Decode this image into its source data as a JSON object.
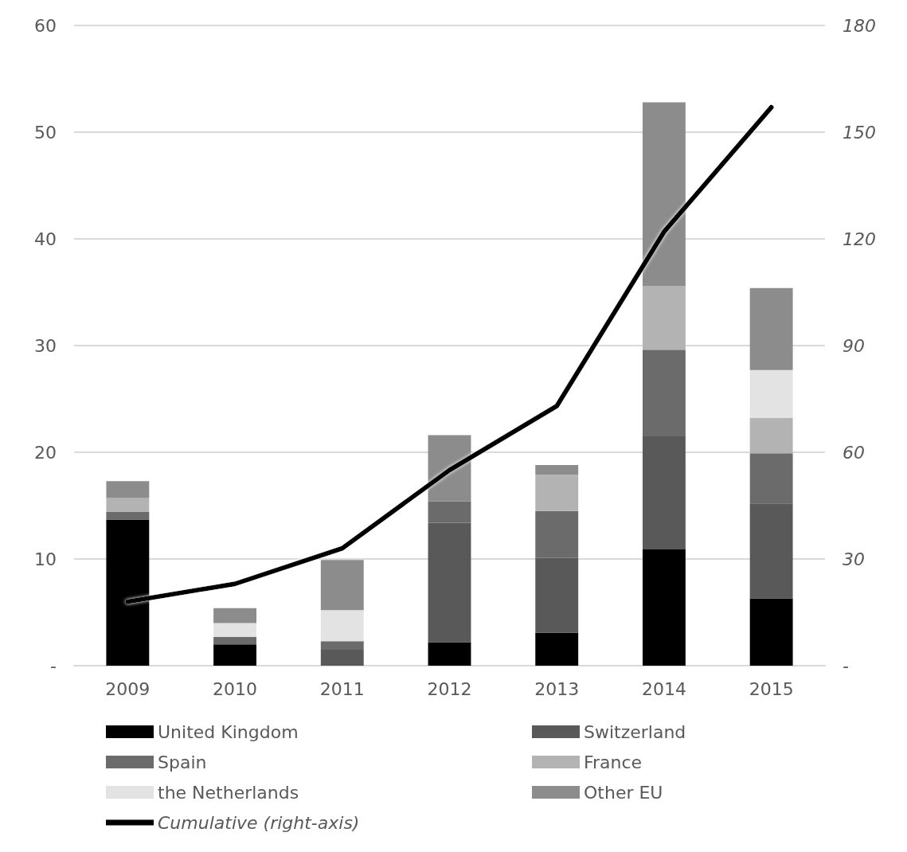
{
  "chart_data": {
    "type": "bar",
    "stacked": true,
    "categories": [
      "2009",
      "2010",
      "2011",
      "2012",
      "2013",
      "2014",
      "2015"
    ],
    "series": [
      {
        "name": "United Kingdom",
        "color": "#000000",
        "values": [
          13.7,
          2.0,
          0,
          2.2,
          3.1,
          10.9,
          6.3
        ]
      },
      {
        "name": "Switzerland",
        "color": "#595959",
        "values": [
          0,
          0,
          1.5,
          11.2,
          7.0,
          10.6,
          8.9
        ]
      },
      {
        "name": "Spain",
        "color": "#6b6b6b",
        "values": [
          0.7,
          0.7,
          0.8,
          2.0,
          4.4,
          8.1,
          4.7
        ]
      },
      {
        "name": "France",
        "color": "#b3b3b3",
        "values": [
          1.3,
          0,
          0,
          0,
          3.4,
          6.0,
          3.3
        ]
      },
      {
        "name": "the Netherlands",
        "color": "#e3e3e3",
        "values": [
          0,
          1.3,
          2.9,
          0,
          0,
          0,
          4.5
        ]
      },
      {
        "name": "Other EU",
        "color": "#8c8c8c",
        "values": [
          1.6,
          1.4,
          4.7,
          6.2,
          0.9,
          17.2,
          7.7
        ]
      },
      {
        "name": "Cumulative (right-axis)",
        "type": "line",
        "axis": "y2",
        "color": "#000000",
        "values": [
          18,
          23,
          33,
          55,
          73,
          122,
          157
        ]
      }
    ],
    "ylim": [
      0,
      60
    ],
    "yticks": [
      {
        "value": 0,
        "label": "-"
      },
      10,
      20,
      30,
      40,
      50,
      60
    ],
    "y2lim": [
      0,
      180
    ],
    "y2ticks": [
      {
        "value": 0,
        "label": "-"
      },
      30,
      60,
      90,
      120,
      150,
      180
    ],
    "grid": "y",
    "legend": "bottom",
    "marker": "none"
  }
}
